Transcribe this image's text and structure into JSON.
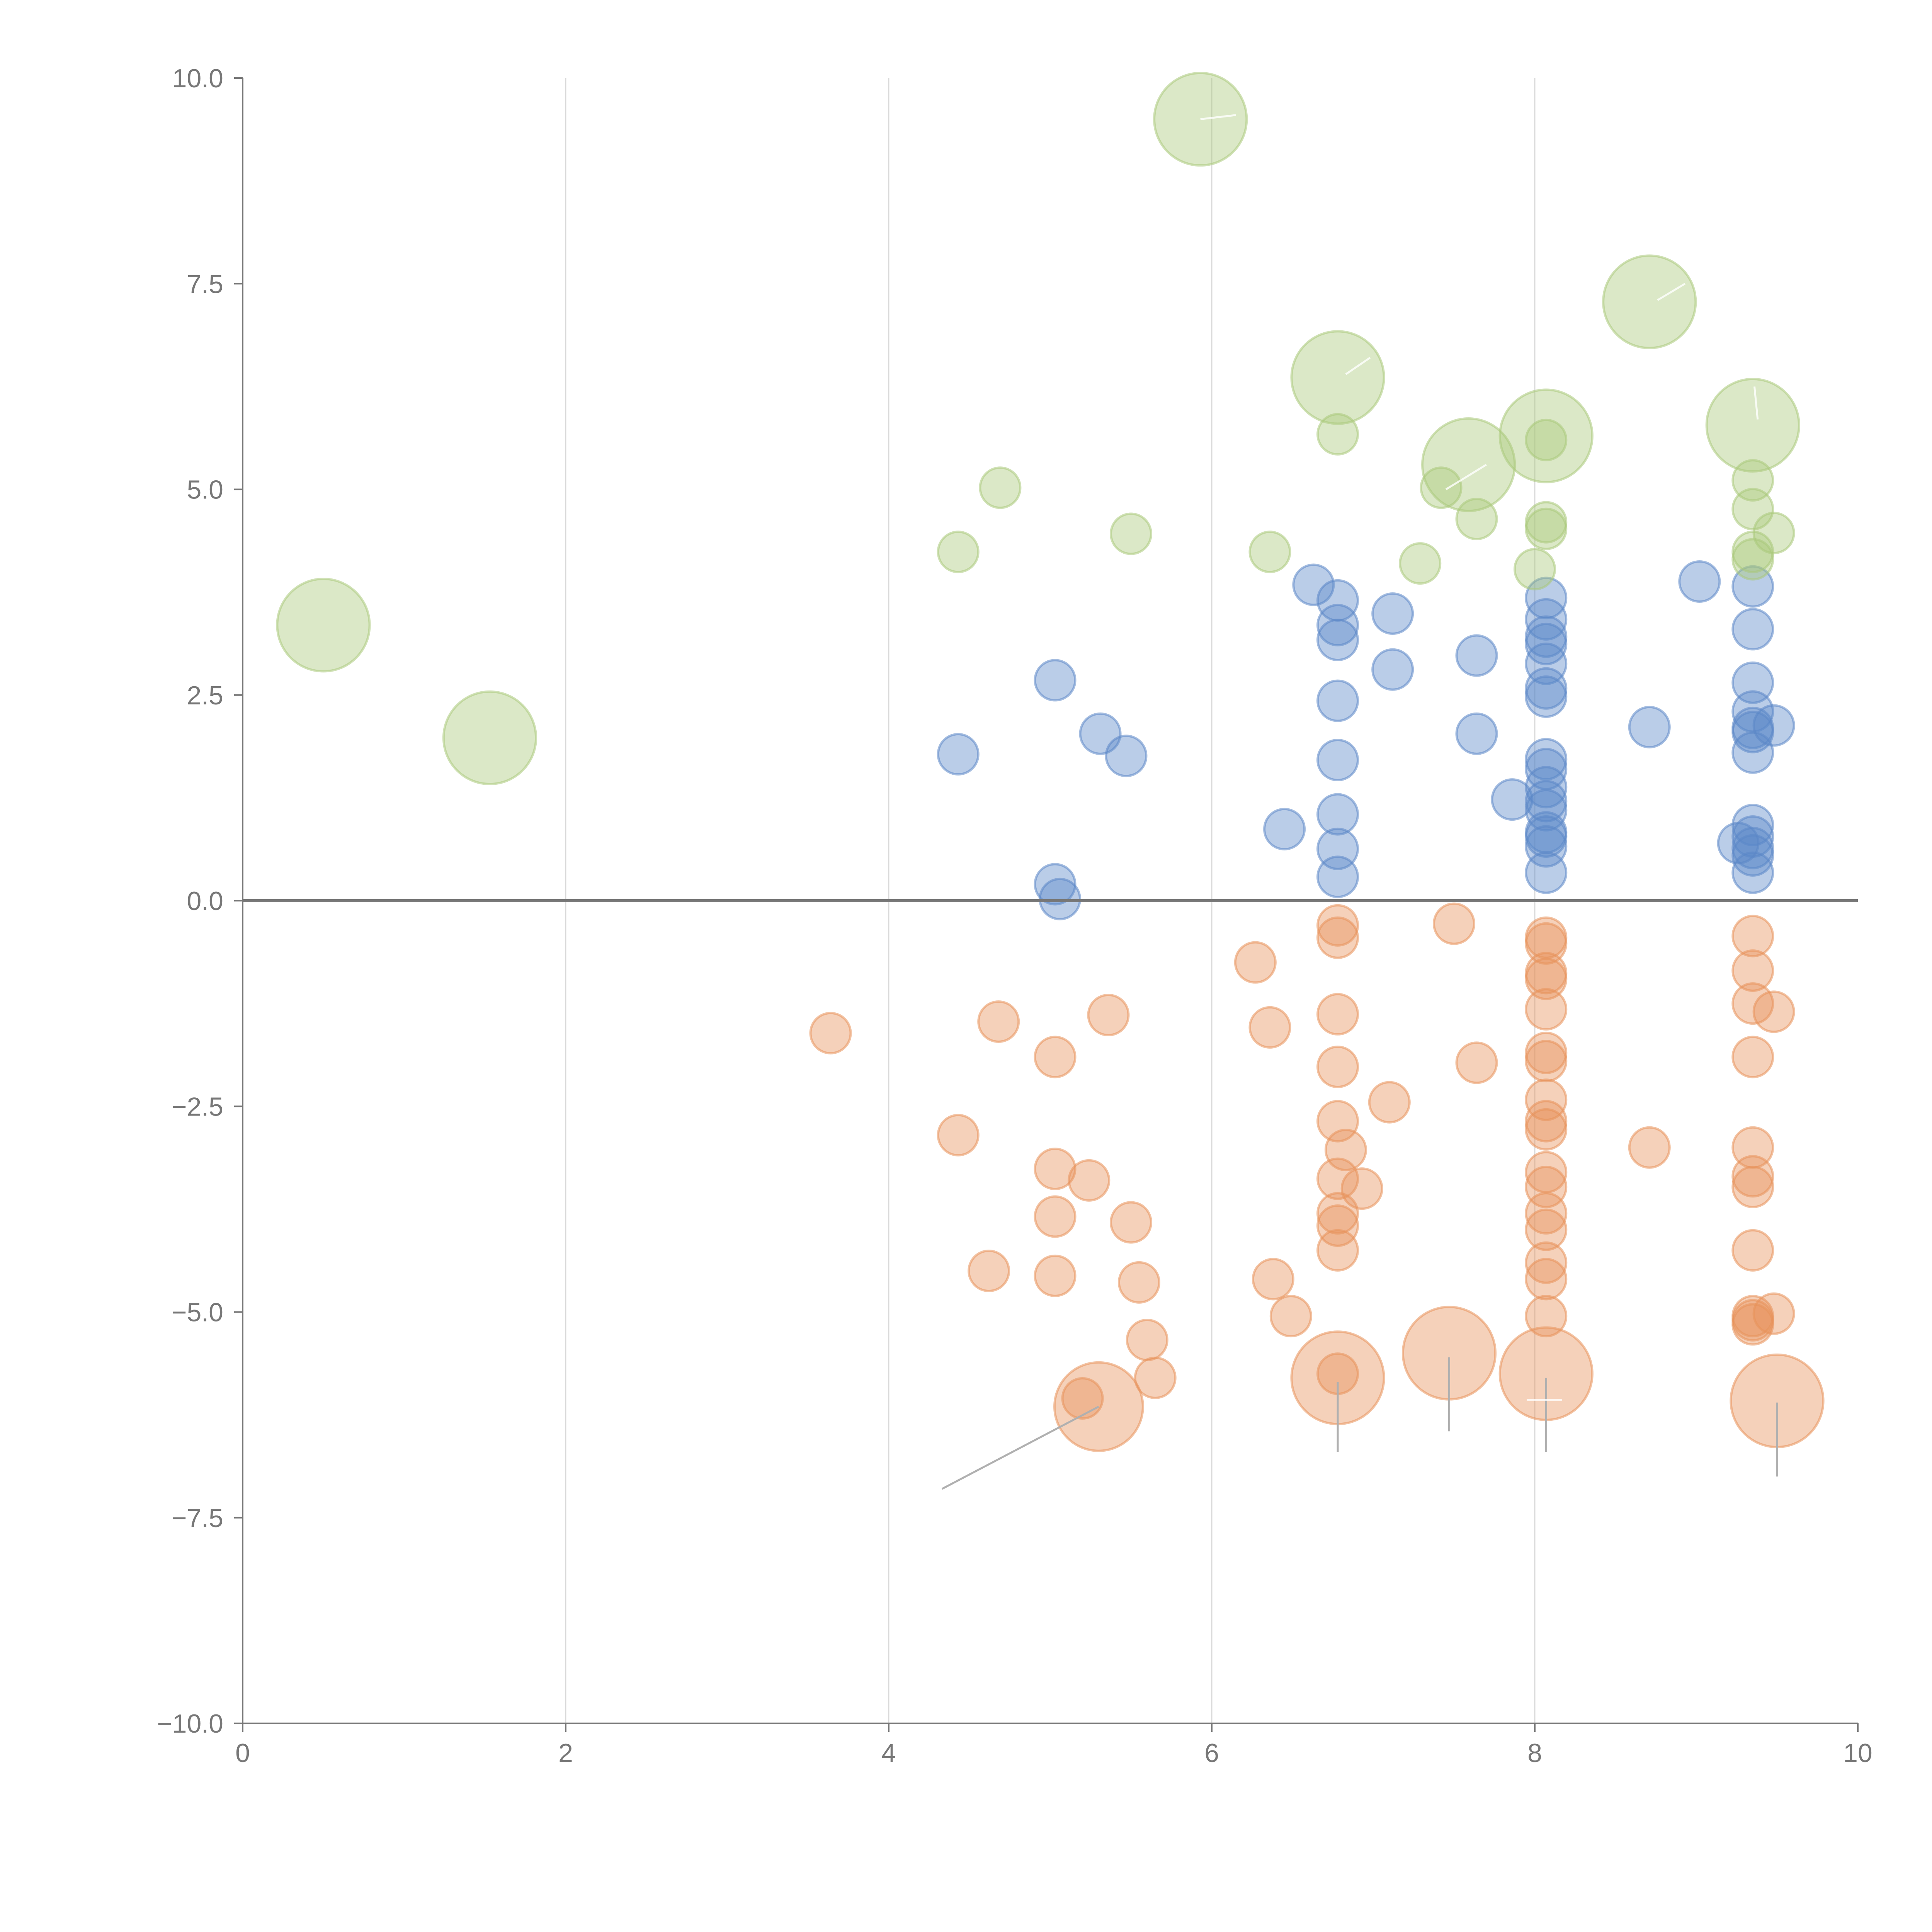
{
  "colors": {
    "positive": "#5b87c7",
    "negative": "#e8915a",
    "highlight": "#a9c97a",
    "axis": "#777777",
    "grid": "#d9d9d9"
  },
  "chart_data": {
    "type": "scatter",
    "subtype": "bubble",
    "title": "",
    "xlabel": "",
    "ylabel": "",
    "xlim": [
      0,
      10
    ],
    "ylim": [
      -10,
      10
    ],
    "x_ticks": [
      "0",
      "2",
      "4",
      "6",
      "8",
      "10"
    ],
    "y_ticks": [
      "10.0",
      "7.5",
      "5.0",
      "2.5",
      "0.0",
      "−2.5",
      "−5.0",
      "−7.5",
      "−10.0"
    ],
    "x_grid": [
      2,
      4,
      6,
      8
    ],
    "zero_line": 0,
    "series": [
      {
        "name": "positive",
        "color_key": "positive",
        "points": [
          [
            4.43,
            1.78,
            1
          ],
          [
            5.03,
            2.68,
            1
          ],
          [
            5.31,
            2.03,
            1
          ],
          [
            5.47,
            1.76,
            1
          ],
          [
            5.03,
            0.2,
            1
          ],
          [
            5.06,
            0.02,
            1
          ],
          [
            6.45,
            0.87,
            1
          ],
          [
            6.63,
            3.84,
            1
          ],
          [
            6.78,
            3.65,
            1
          ],
          [
            6.78,
            3.35,
            1
          ],
          [
            6.78,
            3.17,
            1
          ],
          [
            6.78,
            2.43,
            1
          ],
          [
            6.78,
            1.71,
            1
          ],
          [
            6.78,
            1.05,
            1
          ],
          [
            6.78,
            0.63,
            1
          ],
          [
            6.78,
            0.29,
            1
          ],
          [
            7.12,
            3.49,
            1
          ],
          [
            7.12,
            2.81,
            1
          ],
          [
            7.64,
            2.98,
            1
          ],
          [
            7.64,
            2.03,
            1
          ],
          [
            7.86,
            1.23,
            1
          ],
          [
            8.07,
            3.68,
            1
          ],
          [
            8.07,
            3.42,
            1
          ],
          [
            8.07,
            3.21,
            1
          ],
          [
            8.07,
            3.12,
            1
          ],
          [
            8.07,
            2.88,
            1
          ],
          [
            8.07,
            2.58,
            1
          ],
          [
            8.07,
            2.48,
            1
          ],
          [
            8.07,
            1.72,
            1
          ],
          [
            8.07,
            1.6,
            1
          ],
          [
            8.07,
            1.38,
            1
          ],
          [
            8.07,
            1.21,
            1
          ],
          [
            8.07,
            1.1,
            1
          ],
          [
            8.07,
            0.83,
            1
          ],
          [
            8.07,
            0.78,
            1
          ],
          [
            8.07,
            0.66,
            1
          ],
          [
            8.07,
            0.34,
            1
          ],
          [
            8.71,
            2.11,
            1
          ],
          [
            9.02,
            3.88,
            1
          ],
          [
            9.35,
            3.82,
            1
          ],
          [
            9.35,
            3.3,
            1
          ],
          [
            9.35,
            2.65,
            1
          ],
          [
            9.35,
            2.3,
            1
          ],
          [
            9.35,
            2.1,
            1
          ],
          [
            9.35,
            2.05,
            1
          ],
          [
            9.35,
            1.8,
            1
          ],
          [
            9.35,
            0.92,
            1
          ],
          [
            9.35,
            0.78,
            1
          ],
          [
            9.35,
            0.64,
            1
          ],
          [
            9.35,
            0.55,
            1
          ],
          [
            9.35,
            0.34,
            1
          ],
          [
            9.26,
            0.7,
            1
          ],
          [
            9.48,
            2.13,
            1
          ]
        ]
      },
      {
        "name": "negative",
        "color_key": "negative",
        "points": [
          [
            3.64,
            -1.61,
            1
          ],
          [
            4.43,
            -2.85,
            1
          ],
          [
            4.62,
            -4.5,
            1
          ],
          [
            4.68,
            -1.47,
            1
          ],
          [
            5.03,
            -1.9,
            1
          ],
          [
            5.03,
            -3.26,
            1
          ],
          [
            5.03,
            -3.84,
            1
          ],
          [
            5.03,
            -4.56,
            1
          ],
          [
            5.24,
            -3.4,
            1
          ],
          [
            5.36,
            -1.39,
            1
          ],
          [
            5.5,
            -3.91,
            1
          ],
          [
            5.55,
            -4.64,
            1
          ],
          [
            5.6,
            -5.34,
            1
          ],
          [
            5.65,
            -5.8,
            1
          ],
          [
            5.2,
            -6.05,
            1
          ],
          [
            5.3,
            -6.15,
            2.2
          ],
          [
            6.27,
            -0.75,
            1
          ],
          [
            6.36,
            -1.54,
            1
          ],
          [
            6.38,
            -4.6,
            1
          ],
          [
            6.49,
            -5.05,
            1
          ],
          [
            6.78,
            -0.3,
            1
          ],
          [
            6.78,
            -0.45,
            1
          ],
          [
            6.78,
            -1.38,
            1
          ],
          [
            6.78,
            -2.02,
            1
          ],
          [
            6.78,
            -2.68,
            1
          ],
          [
            6.78,
            -3.38,
            1
          ],
          [
            6.78,
            -3.8,
            1
          ],
          [
            6.78,
            -3.95,
            1
          ],
          [
            6.78,
            -4.25,
            1
          ],
          [
            6.83,
            -3.03,
            1
          ],
          [
            6.93,
            -3.5,
            1
          ],
          [
            7.1,
            -2.45,
            1
          ],
          [
            6.78,
            -5.75,
            1
          ],
          [
            6.78,
            -5.8,
            2.3
          ],
          [
            7.5,
            -0.28,
            1
          ],
          [
            7.64,
            -1.97,
            1
          ],
          [
            7.47,
            -5.5,
            2.3
          ],
          [
            8.07,
            -0.45,
            1
          ],
          [
            8.07,
            -0.52,
            1
          ],
          [
            8.07,
            -0.88,
            1
          ],
          [
            8.07,
            -0.95,
            1
          ],
          [
            8.07,
            -1.32,
            1
          ],
          [
            8.07,
            -1.85,
            1
          ],
          [
            8.07,
            -1.95,
            1
          ],
          [
            8.07,
            -2.42,
            1
          ],
          [
            8.07,
            -2.68,
            1
          ],
          [
            8.07,
            -2.78,
            1
          ],
          [
            8.07,
            -3.3,
            1
          ],
          [
            8.07,
            -3.48,
            1
          ],
          [
            8.07,
            -3.8,
            1
          ],
          [
            8.07,
            -4.0,
            1
          ],
          [
            8.07,
            -4.4,
            1
          ],
          [
            8.07,
            -4.6,
            1
          ],
          [
            8.07,
            -5.05,
            1
          ],
          [
            8.07,
            -5.75,
            2.3
          ],
          [
            8.71,
            -3.0,
            1
          ],
          [
            9.35,
            -0.43,
            1
          ],
          [
            9.35,
            -0.85,
            1
          ],
          [
            9.35,
            -1.25,
            1
          ],
          [
            9.35,
            -1.9,
            1
          ],
          [
            9.35,
            -3.0,
            1
          ],
          [
            9.35,
            -3.35,
            1
          ],
          [
            9.35,
            -3.48,
            1
          ],
          [
            9.35,
            -4.25,
            1
          ],
          [
            9.35,
            -5.05,
            1
          ],
          [
            9.35,
            -5.1,
            1
          ],
          [
            9.35,
            -5.15,
            1
          ],
          [
            9.48,
            -1.35,
            1
          ],
          [
            9.48,
            -5.02,
            1
          ],
          [
            9.5,
            -6.08,
            2.3
          ]
        ]
      },
      {
        "name": "highlight",
        "color_key": "highlight",
        "points": [
          [
            0.5,
            3.35,
            2.3
          ],
          [
            1.53,
            1.98,
            2.3
          ],
          [
            4.43,
            4.24,
            1
          ],
          [
            4.69,
            5.02,
            1
          ],
          [
            5.5,
            4.46,
            1
          ],
          [
            5.93,
            9.5,
            2.3
          ],
          [
            6.36,
            4.24,
            1
          ],
          [
            6.78,
            5.67,
            1
          ],
          [
            6.78,
            6.36,
            2.3
          ],
          [
            7.29,
            4.1,
            1
          ],
          [
            7.42,
            5.02,
            1
          ],
          [
            7.59,
            5.3,
            2.3
          ],
          [
            7.64,
            4.64,
            1
          ],
          [
            8.0,
            4.03,
            1
          ],
          [
            8.07,
            5.65,
            2.3
          ],
          [
            8.07,
            5.6,
            1
          ],
          [
            8.07,
            4.6,
            1
          ],
          [
            8.07,
            4.52,
            1
          ],
          [
            8.71,
            7.28,
            2.3
          ],
          [
            9.35,
            5.78,
            2.3
          ],
          [
            9.35,
            5.11,
            1
          ],
          [
            9.35,
            4.76,
            1
          ],
          [
            9.35,
            4.24,
            1
          ],
          [
            9.35,
            4.15,
            1
          ],
          [
            9.48,
            4.47,
            1
          ]
        ]
      }
    ],
    "annotations": [
      {
        "from": [
          5.3,
          -6.15
        ],
        "to": [
          4.33,
          -7.15
        ],
        "style": "leader"
      },
      {
        "from": [
          6.78,
          -5.85
        ],
        "to": [
          6.78,
          -6.7
        ],
        "style": "leader"
      },
      {
        "from": [
          7.47,
          -5.55
        ],
        "to": [
          7.47,
          -6.45
        ],
        "style": "leader"
      },
      {
        "from": [
          8.07,
          -5.8
        ],
        "to": [
          8.07,
          -6.7
        ],
        "style": "leader"
      },
      {
        "from": [
          9.5,
          -6.1
        ],
        "to": [
          9.5,
          -7.0
        ],
        "style": "leader"
      },
      {
        "from": [
          7.95,
          -6.07
        ],
        "to": [
          8.17,
          -6.07
        ],
        "style": "light"
      },
      {
        "from": [
          5.93,
          9.5
        ],
        "to": [
          6.15,
          9.55
        ],
        "style": "light"
      },
      {
        "from": [
          6.83,
          6.4
        ],
        "to": [
          6.98,
          6.6
        ],
        "style": "light"
      },
      {
        "from": [
          7.45,
          5.0
        ],
        "to": [
          7.7,
          5.3
        ],
        "style": "light"
      },
      {
        "from": [
          8.76,
          7.3
        ],
        "to": [
          8.93,
          7.5
        ],
        "style": "light"
      },
      {
        "from": [
          9.38,
          5.85
        ],
        "to": [
          9.36,
          6.25
        ],
        "style": "light"
      }
    ]
  }
}
